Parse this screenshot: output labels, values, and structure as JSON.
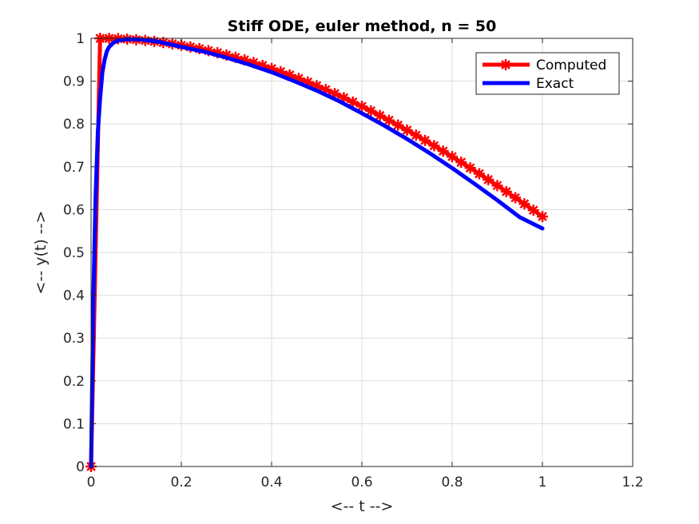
{
  "chart_data": {
    "type": "line",
    "title": "Stiff ODE, euler method, n = 50",
    "xlabel": "<-- t -->",
    "ylabel": "<-- y(t) -->",
    "xlim": [
      0,
      1.2
    ],
    "ylim": [
      0,
      1
    ],
    "xticks": [
      "0",
      "0.2",
      "0.4",
      "0.6",
      "0.8",
      "1",
      "1.2"
    ],
    "yticks": [
      "0",
      "0.1",
      "0.2",
      "0.3",
      "0.4",
      "0.5",
      "0.6",
      "0.7",
      "0.8",
      "0.9",
      "1"
    ],
    "grid": true,
    "legend_position": "top-right",
    "series": [
      {
        "name": "Computed",
        "color": "#ff0000",
        "marker": "star",
        "x": [
          0,
          0.02,
          0.04,
          0.06,
          0.08,
          0.1,
          0.12,
          0.14,
          0.16,
          0.18,
          0.2,
          0.22,
          0.24,
          0.26,
          0.28,
          0.3,
          0.32,
          0.34,
          0.36,
          0.38,
          0.4,
          0.42,
          0.44,
          0.46,
          0.48,
          0.5,
          0.52,
          0.54,
          0.56,
          0.58,
          0.6,
          0.62,
          0.64,
          0.66,
          0.68,
          0.7,
          0.72,
          0.74,
          0.76,
          0.78,
          0.8,
          0.82,
          0.84,
          0.86,
          0.88,
          0.9,
          0.92,
          0.94,
          0.96,
          0.98,
          1
        ],
        "y": [
          0,
          1,
          0.9998,
          0.9992,
          0.9982,
          0.9968,
          0.995,
          0.9928,
          0.9902,
          0.9872,
          0.9838,
          0.98,
          0.9759,
          0.9714,
          0.9665,
          0.9612,
          0.9556,
          0.9496,
          0.9433,
          0.9366,
          0.9295,
          0.9222,
          0.9144,
          0.9064,
          0.898,
          0.8893,
          0.8803,
          0.8709,
          0.8613,
          0.8513,
          0.8411,
          0.8305,
          0.8197,
          0.8086,
          0.7973,
          0.7856,
          0.7737,
          0.7616,
          0.7492,
          0.7366,
          0.7237,
          0.7106,
          0.6973,
          0.6838,
          0.67,
          0.6561,
          0.642,
          0.6277,
          0.6133,
          0.5986,
          0.5838
        ]
      },
      {
        "name": "Exact",
        "color": "#0000ff",
        "x": [
          0,
          0.005,
          0.01,
          0.015,
          0.02,
          0.025,
          0.03,
          0.035,
          0.04,
          0.05,
          0.06,
          0.07,
          0.08,
          0.09,
          0.1,
          0.12,
          0.15,
          0.2,
          0.25,
          0.3,
          0.35,
          0.4,
          0.45,
          0.5,
          0.55,
          0.6,
          0.65,
          0.7,
          0.75,
          0.8,
          0.85,
          0.9,
          0.95,
          1
        ],
        "y": [
          0,
          0.39,
          0.63,
          0.78,
          0.86,
          0.92,
          0.95,
          0.97,
          0.98,
          0.99,
          0.995,
          0.997,
          0.998,
          0.998,
          0.998,
          0.996,
          0.992,
          0.98,
          0.969,
          0.955,
          0.939,
          0.921,
          0.9,
          0.878,
          0.853,
          0.825,
          0.796,
          0.765,
          0.732,
          0.697,
          0.66,
          0.622,
          0.582,
          0.556
        ]
      }
    ]
  }
}
